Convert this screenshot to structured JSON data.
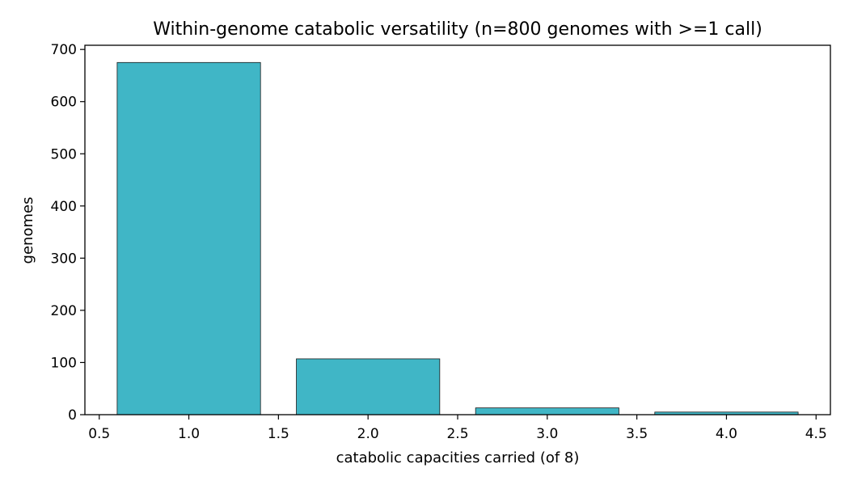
{
  "chart_data": {
    "type": "bar",
    "title": "Within-genome catabolic versatility (n=800 genomes with >=1 call)",
    "xlabel": "catabolic capacities carried (of 8)",
    "ylabel": "genomes",
    "x": [
      1,
      2,
      3,
      4
    ],
    "values": [
      675,
      107,
      13,
      5
    ],
    "bar_width": 0.8,
    "xlim": [
      0.42,
      4.58
    ],
    "ylim": [
      0,
      708
    ],
    "xticks": [
      0.5,
      1.0,
      1.5,
      2.0,
      2.5,
      3.0,
      3.5,
      4.0,
      4.5
    ],
    "xtick_labels": [
      "0.5",
      "1.0",
      "1.5",
      "2.0",
      "2.5",
      "3.0",
      "3.5",
      "4.0",
      "4.5"
    ],
    "yticks": [
      0,
      100,
      200,
      300,
      400,
      500,
      600,
      700
    ],
    "ytick_labels": [
      "0",
      "100",
      "200",
      "300",
      "400",
      "500",
      "600",
      "700"
    ],
    "bar_color": "#40B6C6",
    "edge_color": "#1a1a1a",
    "grid": false,
    "legend": "none"
  }
}
